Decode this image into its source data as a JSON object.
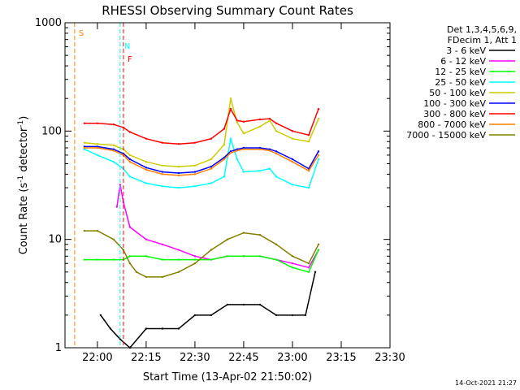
{
  "chart_data": {
    "type": "line",
    "title": "RHESSI Observing Summary Count Rates",
    "xlabel": "Start Time (13-Apr-02 21:50:02)",
    "ylabel_main": "Count Rate (s",
    "ylabel_sup1": "-1",
    "ylabel_mid": " detector",
    "ylabel_sup2": "-1",
    "ylabel_end": ")",
    "yscale": "log",
    "ylim": [
      1,
      1000
    ],
    "xlim": [
      "21:50:02",
      "23:30:00"
    ],
    "x_ticks": [
      "22:00",
      "22:15",
      "22:30",
      "22:45",
      "23:00",
      "23:15",
      "23:30"
    ],
    "y_ticks": [
      "1",
      "10",
      "100",
      "1000"
    ],
    "legend_header": [
      "Det 1,3,4,5,6,9,",
      "FDecim 1, Att 1"
    ],
    "legend_position": "top-right",
    "footer": "14-Oct-2021 21:27",
    "series": [
      {
        "name": "3 - 6 keV",
        "color": "#000000",
        "x": [
          "22:01",
          "22:04",
          "22:07",
          "22:10",
          "22:15",
          "22:20",
          "22:25",
          "22:30",
          "22:35",
          "22:40",
          "22:45",
          "22:50",
          "22:55",
          "23:00",
          "23:04",
          "23:07"
        ],
        "y": [
          2.0,
          1.5,
          1.2,
          1.0,
          1.5,
          1.5,
          1.5,
          2.0,
          2.0,
          2.5,
          2.5,
          2.5,
          2.0,
          2.0,
          2.0,
          5.0
        ]
      },
      {
        "name": "6 - 12 keV",
        "color": "#ff00ff",
        "x": [
          "22:06",
          "22:07",
          "22:08",
          "22:10",
          "22:15",
          "22:20",
          "22:25",
          "22:30",
          "22:35",
          "22:40",
          "22:45",
          "22:50",
          "22:55",
          "23:00",
          "23:05",
          "23:08"
        ],
        "y": [
          20,
          32,
          22,
          13,
          10,
          9,
          8,
          7,
          6.5,
          7,
          7,
          7,
          6.5,
          6,
          5.5,
          8
        ]
      },
      {
        "name": "12 - 25 keV",
        "color": "#00ff00",
        "x": [
          "21:56",
          "22:00",
          "22:05",
          "22:08",
          "22:10",
          "22:15",
          "22:20",
          "22:25",
          "22:30",
          "22:35",
          "22:40",
          "22:45",
          "22:50",
          "22:55",
          "23:00",
          "23:05",
          "23:08"
        ],
        "y": [
          6.5,
          6.5,
          6.5,
          6.5,
          7,
          7,
          6.5,
          6.5,
          6.5,
          6.5,
          7,
          7,
          7,
          6.5,
          5.5,
          5,
          8
        ]
      },
      {
        "name": "25 - 50 keV",
        "color": "#00ffff",
        "x": [
          "21:56",
          "22:00",
          "22:05",
          "22:08",
          "22:10",
          "22:15",
          "22:20",
          "22:25",
          "22:30",
          "22:35",
          "22:39",
          "22:41",
          "22:43",
          "22:45",
          "22:50",
          "22:53",
          "22:55",
          "23:00",
          "23:05",
          "23:08"
        ],
        "y": [
          68,
          60,
          52,
          45,
          38,
          33,
          31,
          30,
          31,
          33,
          38,
          85,
          55,
          42,
          43,
          45,
          38,
          32,
          30,
          55
        ]
      },
      {
        "name": "50 - 100 keV",
        "color": "#cccc00",
        "x": [
          "21:56",
          "22:00",
          "22:05",
          "22:08",
          "22:10",
          "22:15",
          "22:20",
          "22:25",
          "22:30",
          "22:35",
          "22:39",
          "22:41",
          "22:43",
          "22:45",
          "22:50",
          "22:53",
          "22:55",
          "23:00",
          "23:05",
          "23:08"
        ],
        "y": [
          78,
          76,
          74,
          68,
          60,
          52,
          48,
          47,
          48,
          55,
          75,
          200,
          120,
          95,
          110,
          125,
          100,
          85,
          80,
          130
        ]
      },
      {
        "name": "100 - 300 keV",
        "color": "#0000ff",
        "x": [
          "21:56",
          "22:00",
          "22:05",
          "22:08",
          "22:10",
          "22:15",
          "22:20",
          "22:25",
          "22:30",
          "22:35",
          "22:39",
          "22:41",
          "22:43",
          "22:45",
          "22:50",
          "22:53",
          "22:55",
          "23:00",
          "23:05",
          "23:08"
        ],
        "y": [
          72,
          72,
          68,
          62,
          55,
          46,
          42,
          41,
          42,
          47,
          57,
          65,
          68,
          70,
          70,
          68,
          65,
          55,
          45,
          65
        ]
      },
      {
        "name": "300 - 800 keV",
        "color": "#ff0000",
        "x": [
          "21:56",
          "22:00",
          "22:05",
          "22:08",
          "22:10",
          "22:15",
          "22:20",
          "22:25",
          "22:30",
          "22:35",
          "22:39",
          "22:41",
          "22:43",
          "22:45",
          "22:50",
          "22:53",
          "22:55",
          "23:00",
          "23:05",
          "23:08"
        ],
        "y": [
          118,
          118,
          115,
          108,
          98,
          85,
          78,
          76,
          78,
          85,
          105,
          160,
          125,
          122,
          128,
          130,
          118,
          100,
          92,
          160
        ]
      },
      {
        "name": "800 - 7000 keV",
        "color": "#ff8000",
        "x": [
          "21:56",
          "22:00",
          "22:05",
          "22:08",
          "22:10",
          "22:15",
          "22:20",
          "22:25",
          "22:30",
          "22:35",
          "22:39",
          "22:41",
          "22:43",
          "22:45",
          "22:50",
          "22:53",
          "22:55",
          "23:00",
          "23:05",
          "23:08"
        ],
        "y": [
          70,
          70,
          66,
          60,
          52,
          44,
          40,
          39,
          40,
          45,
          55,
          63,
          66,
          68,
          68,
          66,
          62,
          52,
          43,
          60
        ]
      },
      {
        "name": "7000 - 15000 keV",
        "color": "#808000",
        "x": [
          "21:56",
          "22:00",
          "22:05",
          "22:08",
          "22:10",
          "22:12",
          "22:15",
          "22:20",
          "22:25",
          "22:30",
          "22:35",
          "22:40",
          "22:45",
          "22:50",
          "22:55",
          "23:00",
          "23:05",
          "23:08"
        ],
        "y": [
          12,
          12,
          10,
          8,
          6,
          5,
          4.5,
          4.5,
          5,
          6,
          8,
          10,
          11.5,
          11,
          9,
          7,
          6,
          9
        ]
      }
    ],
    "markers": [
      {
        "label": "S",
        "color": "#ff8000",
        "time": "21:53"
      },
      {
        "label": "N",
        "color": "#00ffff",
        "time": "22:07"
      },
      {
        "label": "F",
        "color": "#ff0000",
        "time": "22:08"
      }
    ]
  }
}
